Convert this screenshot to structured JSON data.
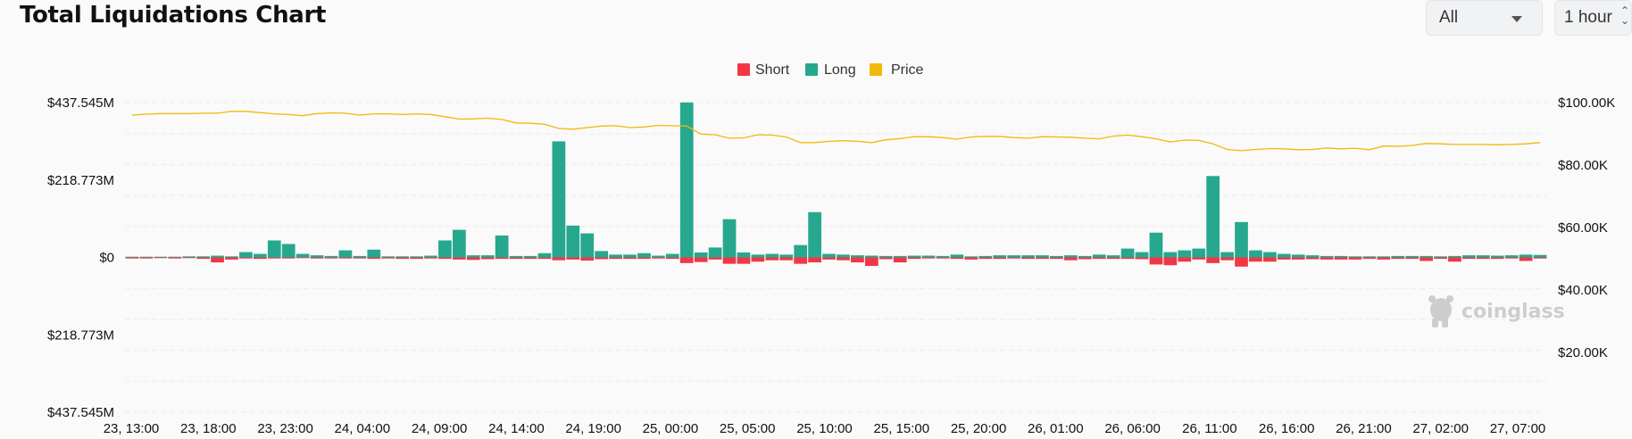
{
  "header": {
    "title": "Total Liquidations Chart",
    "coin_select_value": "All",
    "interval_select_value": "1 hour"
  },
  "watermark": "coinglass",
  "colors": {
    "short": "#f23645",
    "long": "#26a88f",
    "price": "#f0b90b",
    "grid": "#ececec"
  },
  "chart_data": {
    "type": "bar",
    "title": "Total Liquidations Chart",
    "legend": [
      "Short",
      "Long",
      "Price"
    ],
    "legend_position": "top-center",
    "x_tick_labels": [
      "23, 13:00",
      "23, 18:00",
      "23, 23:00",
      "24, 04:00",
      "24, 09:00",
      "24, 14:00",
      "24, 19:00",
      "25, 00:00",
      "25, 05:00",
      "25, 10:00",
      "25, 15:00",
      "25, 20:00",
      "26, 01:00",
      "26, 06:00",
      "26, 11:00",
      "26, 16:00",
      "26, 21:00",
      "27, 02:00",
      "27, 07:00"
    ],
    "y_left_tick_labels": [
      "$437.545M",
      "$218.773M",
      "$0",
      "$218.773M",
      "$437.545M"
    ],
    "y_left_range": [
      -437.545,
      437.545
    ],
    "y_left_unit": "M",
    "y_right_tick_labels": [
      "$100.00K",
      "$80.00K",
      "$60.00K",
      "$40.00K",
      "$20.00K"
    ],
    "y_right_range": [
      0,
      100
    ],
    "y_right_unit": "K",
    "grid": true,
    "series": [
      {
        "name": "Long",
        "values": [
          2,
          2,
          2,
          2,
          3,
          3,
          5,
          3,
          15,
          10,
          48,
          38,
          10,
          6,
          4,
          20,
          4,
          22,
          3,
          3,
          3,
          5,
          48,
          78,
          6,
          6,
          62,
          4,
          4,
          12,
          328,
          90,
          68,
          18,
          8,
          8,
          12,
          5,
          10,
          438,
          14,
          28,
          108,
          14,
          8,
          10,
          8,
          35,
          128,
          10,
          8,
          6,
          5,
          4,
          4,
          5,
          5,
          4,
          8,
          3,
          4,
          6,
          6,
          6,
          6,
          4,
          6,
          4,
          8,
          6,
          25,
          15,
          70,
          15,
          20,
          25,
          230,
          15,
          100,
          20,
          15,
          10,
          8,
          6,
          4,
          4,
          3,
          3,
          3,
          4,
          4,
          4,
          3,
          4,
          6,
          6,
          5,
          6,
          8,
          7
        ]
      },
      {
        "name": "Short",
        "values": [
          -3,
          -3,
          -2,
          -3,
          -2,
          -4,
          -14,
          -6,
          -3,
          -4,
          -3,
          -3,
          -2,
          -3,
          -3,
          -3,
          -3,
          -4,
          -3,
          -4,
          -4,
          -3,
          -4,
          -6,
          -7,
          -5,
          -4,
          -4,
          -4,
          -4,
          -8,
          -6,
          -9,
          -5,
          -4,
          -4,
          -4,
          -3,
          -4,
          -16,
          -13,
          -6,
          -18,
          -18,
          -12,
          -8,
          -8,
          -18,
          -14,
          -6,
          -8,
          -14,
          -24,
          -5,
          -14,
          -4,
          -3,
          -3,
          -4,
          -6,
          -4,
          -4,
          -3,
          -4,
          -4,
          -4,
          -8,
          -5,
          -4,
          -4,
          -4,
          -5,
          -20,
          -22,
          -12,
          -6,
          -16,
          -8,
          -26,
          -12,
          -12,
          -6,
          -6,
          -5,
          -6,
          -6,
          -6,
          -4,
          -6,
          -4,
          -4,
          -10,
          -4,
          -12,
          -4,
          -4,
          -4,
          -3,
          -10,
          -3
        ]
      },
      {
        "name": "Price",
        "values": [
          96,
          96.3,
          96.5,
          96.5,
          96.5,
          96.6,
          96.6,
          97.2,
          97.2,
          96.8,
          96.4,
          96.2,
          95.8,
          96.5,
          96.7,
          96.6,
          96.0,
          96.4,
          96.4,
          96.2,
          96.4,
          96.2,
          95.5,
          94.7,
          94.8,
          95.0,
          94.6,
          93.5,
          93.4,
          93.1,
          91.7,
          91.5,
          92.0,
          92.5,
          92.6,
          92.0,
          92.2,
          92.7,
          92.6,
          92.5,
          89.9,
          89.7,
          88.6,
          88.7,
          89.7,
          89.6,
          89.0,
          87.2,
          87.2,
          87.6,
          87.8,
          87.6,
          87.2,
          88.1,
          88.5,
          89.1,
          89.1,
          88.8,
          88.3,
          89.0,
          89.2,
          89.2,
          88.8,
          88.6,
          89.1,
          89.0,
          88.9,
          88.6,
          88.4,
          89.3,
          89.6,
          89.1,
          88.4,
          87.4,
          88.0,
          87.9,
          86.8,
          85.0,
          84.6,
          85.0,
          85.3,
          85.2,
          84.9,
          85.0,
          85.5,
          85.2,
          85.4,
          84.9,
          86.1,
          86.0,
          86.3,
          86.9,
          86.8,
          86.6,
          86.6,
          86.6,
          86.5,
          86.6,
          86.8,
          87.2
        ]
      }
    ]
  }
}
